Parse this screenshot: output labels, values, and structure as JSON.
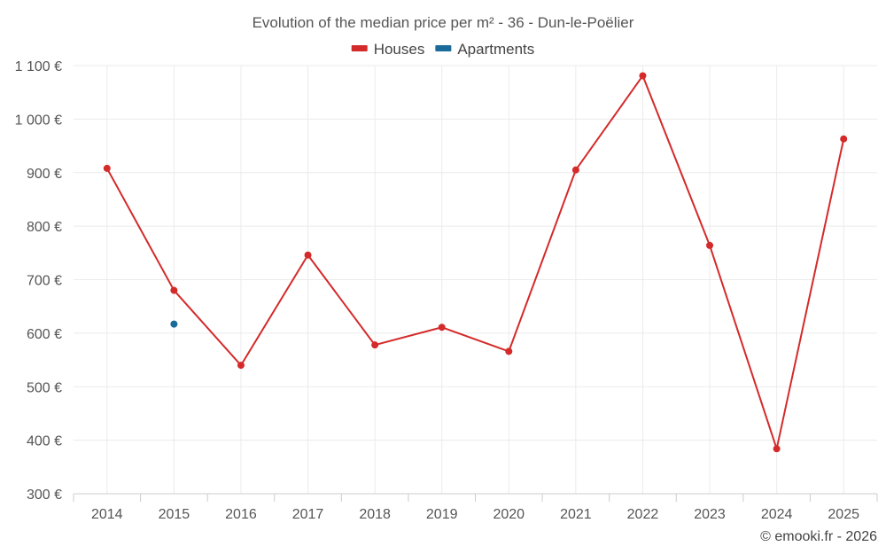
{
  "chart_data": {
    "type": "line",
    "title": "Evolution of the median price per m² - 36 - Dun-le-Poëlier",
    "categories": [
      "2014",
      "2015",
      "2016",
      "2017",
      "2018",
      "2019",
      "2020",
      "2021",
      "2022",
      "2023",
      "2024",
      "2025"
    ],
    "series": [
      {
        "name": "Houses",
        "color": "#d42a2a",
        "values": [
          908,
          680,
          540,
          746,
          578,
          611,
          566,
          905,
          1081,
          764,
          384,
          963
        ]
      },
      {
        "name": "Apartments",
        "color": "#1a6a9a",
        "values": [
          null,
          617,
          null,
          null,
          null,
          null,
          null,
          null,
          null,
          null,
          null,
          null
        ]
      }
    ],
    "ylim": [
      300,
      1100
    ],
    "yticks": [
      300,
      400,
      500,
      600,
      700,
      800,
      900,
      1000,
      1100
    ],
    "ytick_labels": [
      "300 €",
      "400 €",
      "500 €",
      "600 €",
      "700 €",
      "800 €",
      "900 €",
      "1 000 €",
      "1 100 €"
    ],
    "grid": true,
    "legend_position": "top-center"
  },
  "credit": "© emooki.fr - 2026"
}
